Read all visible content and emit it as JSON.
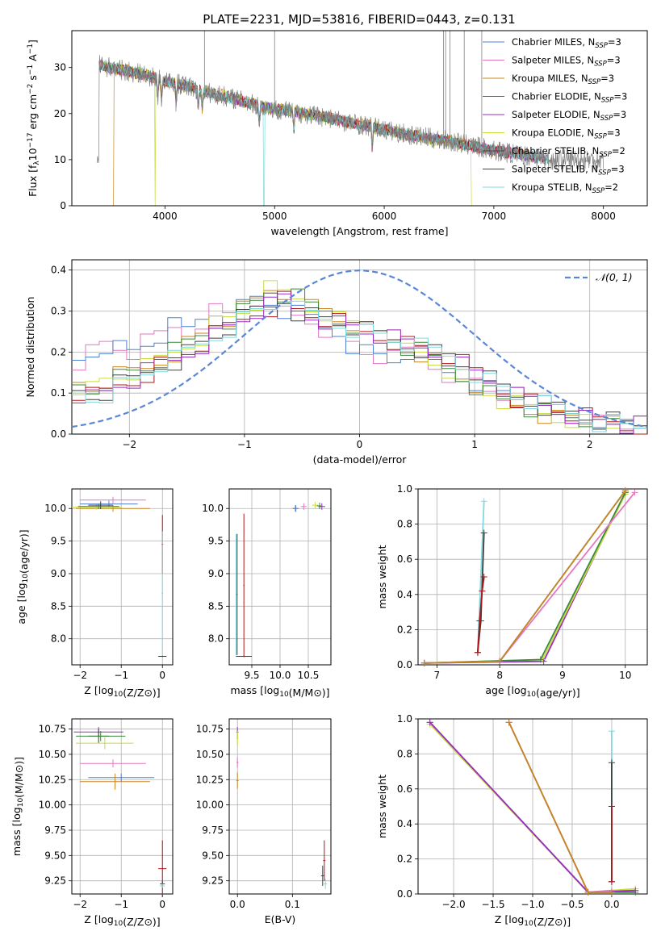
{
  "title": "PLATE=2231, MJD=53816, FIBERID=0443, z=0.131",
  "series": [
    {
      "key": "chab_miles",
      "name": "Chabrier MILES, N",
      "sub": "SSP",
      "tail": "=3",
      "color": "#4e81d6"
    },
    {
      "key": "salp_miles",
      "name": "Salpeter MILES, N",
      "sub": "SSP",
      "tail": "=3",
      "color": "#e377c2"
    },
    {
      "key": "krou_miles",
      "name": "Kroupa MILES, N",
      "sub": "SSP",
      "tail": "=3",
      "color": "#c8861e"
    },
    {
      "key": "chab_elodie",
      "name": "Chabrier ELODIE, N",
      "sub": "SSP",
      "tail": "=3",
      "color": "#3a8a3a"
    },
    {
      "key": "salp_elodie",
      "name": "Salpeter ELODIE, N",
      "sub": "SSP",
      "tail": "=3",
      "color": "#9b2cc8"
    },
    {
      "key": "krou_elodie",
      "name": "Kroupa ELODIE, N",
      "sub": "SSP",
      "tail": "=3",
      "color": "#c8dc3c"
    },
    {
      "key": "chab_stelib",
      "name": "Chabrier STELIB, N",
      "sub": "SSP",
      "tail": "=2",
      "color": "#404040"
    },
    {
      "key": "salp_stelib",
      "name": "Salpeter STELIB, N",
      "sub": "SSP",
      "tail": "=3",
      "color": "#b0151a"
    },
    {
      "key": "krou_stelib",
      "name": "Kroupa STELIB, N",
      "sub": "SSP",
      "tail": "=2",
      "color": "#7fd9de"
    }
  ],
  "chart_data": [
    {
      "id": "spectrum",
      "type": "line",
      "xlabel": "wavelength [Angstrom, rest frame]",
      "ylabel": "Flux [f",
      "ylabel_parts": [
        "Flux [f",
        "λ",
        "10",
        "−17",
        " erg cm",
        "−2",
        " s",
        "−1",
        " A",
        "−1",
        "]"
      ],
      "xlim": [
        3150,
        8400
      ],
      "ylim": [
        0,
        38
      ],
      "xticks": [
        4000,
        5000,
        6000,
        7000,
        8000
      ],
      "yticks": [
        0,
        10,
        20,
        30
      ],
      "grid": false,
      "legend": "right",
      "data_color": "#808080",
      "continuum": {
        "x": [
          3400,
          3600,
          3800,
          4000,
          4200,
          4400,
          4600,
          4800,
          5000,
          5400,
          5800,
          6200,
          6600,
          7000,
          7400,
          7500
        ],
        "y": [
          30.5,
          29.5,
          28.5,
          27.0,
          26.0,
          24.5,
          23.5,
          22.0,
          21.0,
          19.5,
          17.5,
          15.5,
          14.0,
          12.0,
          10.5,
          10.0
        ]
      }
    },
    {
      "id": "residuals",
      "type": "line",
      "xlabel": "(data-model)/error",
      "ylabel": "Normed distribution",
      "xlim": [
        -2.5,
        2.5
      ],
      "ylim": [
        0,
        0.425
      ],
      "xticks": [
        -2,
        -1,
        0,
        1,
        2
      ],
      "yticks": [
        0.0,
        0.1,
        0.2,
        0.3,
        0.4
      ],
      "grid": true,
      "legend": "top-right",
      "gaussian_label": "𝒩(0, 1)",
      "gaussian_color": "#5a86d6",
      "hist_x": [
        -2.5,
        2.5
      ],
      "hist_groups": [
        {
          "keys": [
            "salp_miles",
            "chab_miles"
          ],
          "values": [
            0.18,
            0.2,
            0.22,
            0.21,
            0.2,
            0.22,
            0.24,
            0.26,
            0.25,
            0.28,
            0.3,
            0.29,
            0.31,
            0.33,
            0.32,
            0.3,
            0.29,
            0.28,
            0.26,
            0.25,
            0.22,
            0.2,
            0.19,
            0.18,
            0.2,
            0.19,
            0.17,
            0.15,
            0.14,
            0.13,
            0.11,
            0.1,
            0.09,
            0.08,
            0.07,
            0.06,
            0.05,
            0.04,
            0.04,
            0.03,
            0.03,
            0.02
          ]
        },
        {
          "keys": [
            "krou_miles",
            "krou_elodie",
            "chab_elodie"
          ],
          "values": [
            0.12,
            0.11,
            0.13,
            0.14,
            0.15,
            0.16,
            0.18,
            0.2,
            0.22,
            0.24,
            0.27,
            0.28,
            0.3,
            0.32,
            0.35,
            0.34,
            0.33,
            0.31,
            0.3,
            0.28,
            0.27,
            0.25,
            0.24,
            0.23,
            0.21,
            0.2,
            0.18,
            0.16,
            0.14,
            0.12,
            0.1,
            0.08,
            0.07,
            0.06,
            0.05,
            0.04,
            0.04,
            0.03,
            0.03,
            0.02,
            0.02,
            0.02
          ]
        },
        {
          "keys": [
            "salp_stelib",
            "chab_stelib",
            "salp_elodie",
            "krou_stelib"
          ],
          "values": [
            0.1,
            0.09,
            0.1,
            0.12,
            0.13,
            0.15,
            0.17,
            0.18,
            0.2,
            0.22,
            0.24,
            0.26,
            0.28,
            0.3,
            0.31,
            0.33,
            0.3,
            0.29,
            0.28,
            0.27,
            0.26,
            0.25,
            0.24,
            0.23,
            0.22,
            0.21,
            0.2,
            0.19,
            0.17,
            0.15,
            0.13,
            0.11,
            0.09,
            0.08,
            0.07,
            0.06,
            0.05,
            0.04,
            0.03,
            0.03,
            0.02,
            0.02
          ]
        }
      ]
    },
    {
      "id": "age_vs_Z",
      "type": "scatter",
      "xlabel": "Z [log10(Z/Z⊙)]",
      "ylabel": "age [log10(age/yr)]",
      "xlim": [
        -2.2,
        0.25
      ],
      "ylim": [
        7.6,
        10.3
      ],
      "xticks": [
        -2,
        -1,
        0
      ],
      "yticks": [
        8.0,
        8.5,
        9.0,
        9.5,
        10.0
      ],
      "grid": true,
      "points": [
        {
          "key": "salp_miles",
          "x": -1.2,
          "y": 10.13,
          "xerr": 0.8,
          "yerr": 0.05
        },
        {
          "key": "chab_miles",
          "x": -1.3,
          "y": 10.07,
          "xerr": 0.7,
          "yerr": 0.05
        },
        {
          "key": "krou_miles",
          "x": -1.2,
          "y": 10.0,
          "xerr": 0.9,
          "yerr": 0.05
        },
        {
          "key": "krou_elodie",
          "x": -1.6,
          "y": 10.02,
          "xerr": 0.6,
          "yerr": 0.04
        },
        {
          "key": "chab_elodie",
          "x": -1.55,
          "y": 10.03,
          "xerr": 0.5,
          "yerr": 0.04
        },
        {
          "key": "chab_stelib",
          "x": -1.5,
          "y": 10.05,
          "xerr": 0.3,
          "yerr": 0.06
        },
        {
          "key": "salp_stelib",
          "x": 0.0,
          "y": 9.45,
          "xerr": 0.02,
          "yerr": 0.45
        },
        {
          "key": "krou_stelib",
          "x": 0.0,
          "y": 8.7,
          "xerr": 0.02,
          "yerr": 0.95
        },
        {
          "key": "chab_stelib",
          "x": 0.0,
          "y": 7.73,
          "xerr": 0.1,
          "yerr": 0.01
        }
      ]
    },
    {
      "id": "age_vs_mass",
      "type": "scatter",
      "xlabel": "mass [log10(M/M⊙)]",
      "ylabel": "",
      "xlim": [
        9.1,
        10.9
      ],
      "ylim": [
        7.6,
        10.3
      ],
      "xticks": [
        9.5,
        10.0,
        10.5
      ],
      "yticks": [
        8.0,
        8.5,
        9.0,
        9.5,
        10.0
      ],
      "grid": true,
      "points": [
        {
          "key": "krou_miles",
          "x": 10.27,
          "y": 10.0,
          "xerr": 0.05,
          "yerr": 0.05
        },
        {
          "key": "chab_miles",
          "x": 10.28,
          "y": 10.0,
          "xerr": 0.05,
          "yerr": 0.05
        },
        {
          "key": "salp_miles",
          "x": 10.42,
          "y": 10.03,
          "xerr": 0.05,
          "yerr": 0.05
        },
        {
          "key": "krou_elodie",
          "x": 10.62,
          "y": 10.05,
          "xerr": 0.05,
          "yerr": 0.05
        },
        {
          "key": "salp_elodie",
          "x": 10.74,
          "y": 10.03,
          "xerr": 0.06,
          "yerr": 0.05
        },
        {
          "key": "chab_elodie",
          "x": 10.7,
          "y": 10.04,
          "xerr": 0.05,
          "yerr": 0.05
        },
        {
          "key": "salp_stelib",
          "x": 9.36,
          "y": 8.82,
          "xerr": 0.01,
          "yerr": 1.1
        },
        {
          "key": "chab_stelib",
          "x": 9.24,
          "y": 8.68,
          "xerr": 0.01,
          "yerr": 0.93
        },
        {
          "key": "krou_stelib",
          "x": 9.22,
          "y": 8.68,
          "xerr": 0.01,
          "yerr": 0.93
        },
        {
          "key": "salp_stelib",
          "x": 9.36,
          "y": 7.73,
          "xerr": 0.14,
          "yerr": 0.01
        }
      ]
    },
    {
      "id": "weight_vs_age",
      "type": "line",
      "xlabel": "age [log10(age/yr)]",
      "ylabel": "mass weight",
      "xlim": [
        6.7,
        10.35
      ],
      "ylim": [
        0,
        1.0
      ],
      "xticks": [
        7,
        8,
        9,
        10
      ],
      "yticks": [
        0.0,
        0.2,
        0.4,
        0.6,
        0.8,
        1.0
      ],
      "grid": true,
      "lines": [
        {
          "key": "salp_elodie",
          "x": [
            6.8,
            8.7,
            10.0
          ],
          "y": [
            0.01,
            0.02,
            0.98
          ]
        },
        {
          "key": "krou_elodie",
          "x": [
            6.8,
            8.68,
            10.0
          ],
          "y": [
            0.01,
            0.03,
            0.97
          ]
        },
        {
          "key": "chab_elodie",
          "x": [
            6.8,
            8.65,
            10.0
          ],
          "y": [
            0.01,
            0.03,
            0.98
          ]
        },
        {
          "key": "salp_miles",
          "x": [
            6.8,
            8.0,
            10.15
          ],
          "y": [
            0.01,
            0.02,
            0.98
          ]
        },
        {
          "key": "chab_miles",
          "x": [
            6.8,
            8.0,
            10.0
          ],
          "y": [
            0.01,
            0.02,
            0.99
          ]
        },
        {
          "key": "krou_miles",
          "x": [
            6.8,
            8.0,
            10.0
          ],
          "y": [
            0.01,
            0.02,
            0.99
          ]
        },
        {
          "key": "krou_stelib",
          "x": [
            7.65,
            7.75
          ],
          "y": [
            0.07,
            0.93
          ]
        },
        {
          "key": "chab_stelib",
          "x": [
            7.65,
            7.7,
            7.75
          ],
          "y": [
            0.07,
            0.25,
            0.75
          ]
        },
        {
          "key": "salp_stelib",
          "x": [
            7.65,
            7.68,
            7.72,
            7.75
          ],
          "y": [
            0.07,
            0.25,
            0.42,
            0.5
          ]
        }
      ]
    },
    {
      "id": "mass_vs_Z",
      "type": "scatter",
      "xlabel": "Z [log10(Z/Z⊙)]",
      "ylabel": "mass [log10(M/M⊙)]",
      "xlim": [
        -2.2,
        0.25
      ],
      "ylim": [
        9.12,
        10.85
      ],
      "xticks": [
        -2,
        -1,
        0
      ],
      "yticks": [
        9.25,
        9.5,
        9.75,
        10.0,
        10.25,
        10.5,
        10.75
      ],
      "grid": true,
      "points": [
        {
          "key": "salp_elodie",
          "x": -1.55,
          "y": 10.72,
          "xerr": 0.6,
          "yerr": 0.05
        },
        {
          "key": "chab_stelib",
          "x": -1.55,
          "y": 10.68,
          "xerr": 0.25,
          "yerr": 0.07
        },
        {
          "key": "chab_elodie",
          "x": -1.5,
          "y": 10.68,
          "xerr": 0.6,
          "yerr": 0.05
        },
        {
          "key": "krou_elodie",
          "x": -1.4,
          "y": 10.61,
          "xerr": 0.7,
          "yerr": 0.06
        },
        {
          "key": "salp_miles",
          "x": -1.2,
          "y": 10.41,
          "xerr": 0.8,
          "yerr": 0.04
        },
        {
          "key": "chab_miles",
          "x": -1.0,
          "y": 10.27,
          "xerr": 0.8,
          "yerr": 0.04
        },
        {
          "key": "krou_miles",
          "x": -1.15,
          "y": 10.23,
          "xerr": 0.85,
          "yerr": 0.08
        },
        {
          "key": "salp_stelib",
          "x": 0.0,
          "y": 9.37,
          "xerr": 0.1,
          "yerr": 0.28
        },
        {
          "key": "chab_stelib",
          "x": 0.0,
          "y": 9.22,
          "xerr": 0.06,
          "yerr": 0.03
        },
        {
          "key": "krou_stelib",
          "x": 0.0,
          "y": 9.2,
          "xerr": 0.06,
          "yerr": 0.02
        }
      ]
    },
    {
      "id": "mass_vs_ebv",
      "type": "scatter",
      "xlabel": "E(B-V)",
      "ylabel": "",
      "xlim": [
        -0.015,
        0.17
      ],
      "ylim": [
        9.12,
        10.85
      ],
      "xticks": [
        0.0,
        0.1
      ],
      "yticks": [
        9.25,
        9.5,
        9.75,
        10.0,
        10.25,
        10.5,
        10.75
      ],
      "grid": true,
      "points": [
        {
          "key": "salp_elodie",
          "x": 0.0,
          "y": 10.72,
          "xerr": 0.002,
          "yerr": 0.05
        },
        {
          "key": "krou_elodie",
          "x": 0.0,
          "y": 10.66,
          "xerr": 0.002,
          "yerr": 0.07
        },
        {
          "key": "salp_miles",
          "x": 0.0,
          "y": 10.42,
          "xerr": 0.002,
          "yerr": 0.05
        },
        {
          "key": "krou_miles",
          "x": 0.0,
          "y": 10.24,
          "xerr": 0.002,
          "yerr": 0.08
        },
        {
          "key": "chab_stelib",
          "x": 0.155,
          "y": 9.3,
          "xerr": 0.003,
          "yerr": 0.1
        },
        {
          "key": "salp_stelib",
          "x": 0.158,
          "y": 9.45,
          "xerr": 0.002,
          "yerr": 0.2
        },
        {
          "key": "krou_stelib",
          "x": 0.16,
          "y": 9.22,
          "xerr": 0.003,
          "yerr": 0.05
        }
      ]
    },
    {
      "id": "weight_vs_Z",
      "type": "line",
      "xlabel": "Z [log10(Z/Z⊙)]",
      "ylabel": "mass weight",
      "xlim": [
        -2.45,
        0.45
      ],
      "ylim": [
        0,
        1.0
      ],
      "xticks": [
        -2.0,
        -1.5,
        -1.0,
        -0.5,
        0.0
      ],
      "yticks": [
        0.0,
        0.2,
        0.4,
        0.6,
        0.8,
        1.0
      ],
      "grid": true,
      "lines": [
        {
          "key": "chab_elodie",
          "x": [
            -2.3,
            -0.3,
            0.3
          ],
          "y": [
            0.98,
            0.01,
            0.01
          ]
        },
        {
          "key": "krou_elodie",
          "x": [
            -2.3,
            -0.3,
            0.3
          ],
          "y": [
            0.97,
            0.01,
            0.03
          ]
        },
        {
          "key": "salp_elodie",
          "x": [
            -2.3,
            -0.3,
            0.3
          ],
          "y": [
            0.98,
            0.01,
            0.02
          ]
        },
        {
          "key": "chab_miles",
          "x": [
            -1.3,
            -0.3,
            0.0
          ],
          "y": [
            0.98,
            0.01,
            0.01
          ]
        },
        {
          "key": "salp_miles",
          "x": [
            -1.3,
            -0.3,
            0.0
          ],
          "y": [
            0.98,
            0.01,
            0.02
          ]
        },
        {
          "key": "krou_miles",
          "x": [
            -1.3,
            -0.3,
            0.0
          ],
          "y": [
            0.98,
            0.01,
            0.01
          ]
        },
        {
          "key": "krou_stelib",
          "x": [
            0.0,
            0.0
          ],
          "y": [
            0.07,
            0.93
          ]
        },
        {
          "key": "chab_stelib",
          "x": [
            0.0,
            0.0
          ],
          "y": [
            0.07,
            0.75
          ]
        },
        {
          "key": "salp_stelib",
          "x": [
            0.0,
            0.0
          ],
          "y": [
            0.07,
            0.5
          ]
        }
      ]
    }
  ]
}
